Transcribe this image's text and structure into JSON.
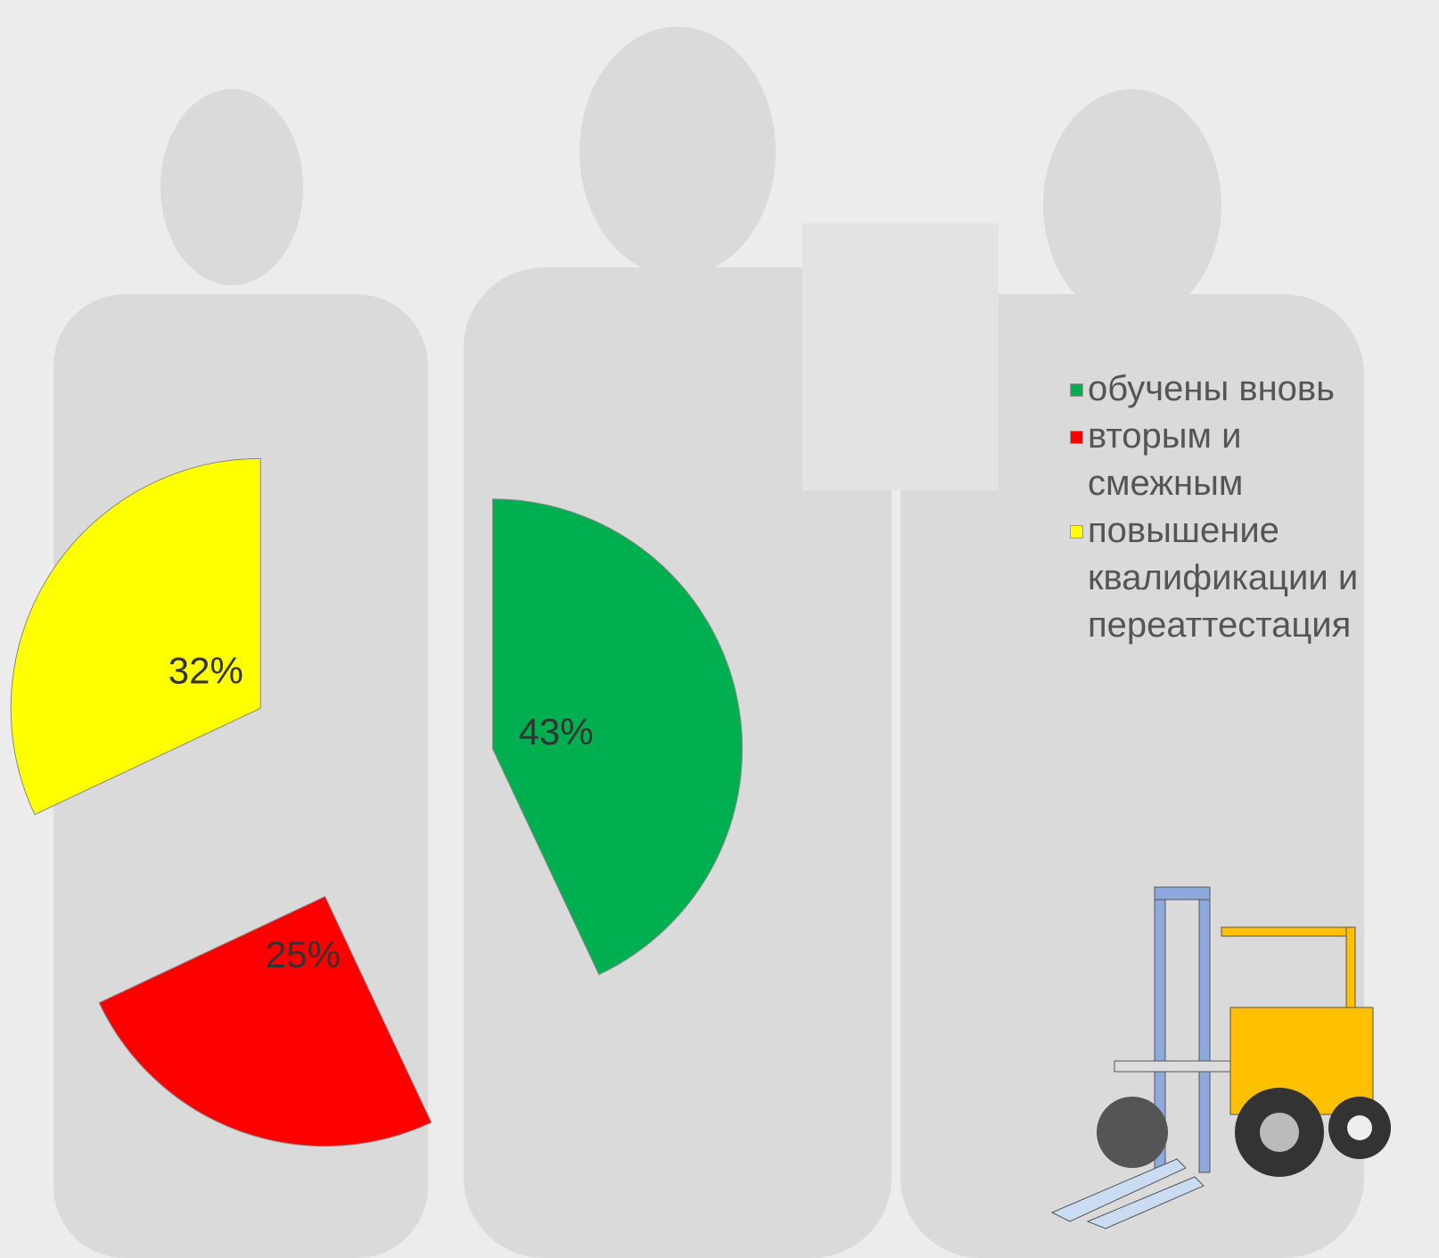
{
  "chart_data": {
    "type": "pie",
    "categories": [
      "обучены вновь",
      "вторым  и смежным",
      "повышение квалификации и переаттестация"
    ],
    "values": [
      43,
      25,
      32
    ],
    "value_labels": [
      "43%",
      "25%",
      "32%"
    ],
    "colors": [
      "#00b050",
      "#ff0000",
      "#ffff00"
    ],
    "legend": "right"
  }
}
